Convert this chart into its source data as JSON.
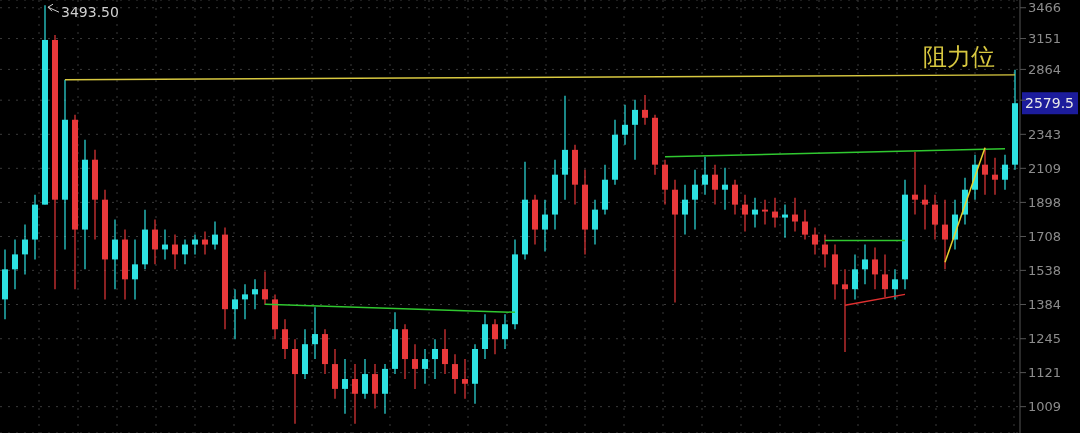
{
  "chart_data": {
    "type": "candlestick",
    "categories": [
      null,
      null,
      null,
      null,
      null,
      null,
      null,
      null,
      null,
      null,
      null,
      null,
      null,
      null,
      null,
      null,
      null,
      null,
      null,
      null,
      null,
      null,
      null,
      null,
      null,
      null,
      null,
      null,
      null,
      null,
      null,
      null,
      null,
      null,
      null,
      null,
      null,
      null,
      null,
      null,
      null,
      null,
      null,
      null,
      null,
      null,
      null,
      null,
      null,
      null,
      null,
      null,
      null,
      null,
      null,
      null,
      null,
      null,
      null,
      null,
      null,
      null,
      null,
      null,
      null,
      null,
      null,
      null,
      null,
      null,
      null,
      null,
      null,
      null,
      null,
      null,
      null,
      null,
      null,
      null,
      null,
      null,
      null,
      null,
      null,
      null,
      null,
      null,
      null,
      null,
      null,
      null,
      null,
      null,
      null,
      null,
      null,
      null,
      null,
      null,
      null,
      null
    ],
    "ohlc": [
      [
        1406,
        1641,
        1322,
        1543
      ],
      [
        1543,
        1692,
        1451,
        1616
      ],
      [
        1616,
        1772,
        1519,
        1692
      ],
      [
        1692,
        1944,
        1591,
        1885
      ],
      [
        1885,
        3493.5,
        1885,
        3137
      ],
      [
        3137,
        3186,
        1451,
        1914
      ],
      [
        1914,
        2773,
        1641,
        2451
      ],
      [
        2451,
        2489,
        1451,
        1745
      ],
      [
        1745,
        2304,
        1543,
        2166
      ],
      [
        2166,
        2233,
        1692,
        1914
      ],
      [
        1914,
        1974,
        1406,
        1591
      ],
      [
        1591,
        1800,
        1451,
        1692
      ],
      [
        1692,
        1745,
        1406,
        1496
      ],
      [
        1496,
        1692,
        1406,
        1567
      ],
      [
        1567,
        1856,
        1543,
        1745
      ],
      [
        1745,
        1800,
        1567,
        1641
      ],
      [
        1641,
        1745,
        1591,
        1666
      ],
      [
        1666,
        1718,
        1543,
        1616
      ],
      [
        1616,
        1692,
        1567,
        1666
      ],
      [
        1666,
        1718,
        1616,
        1692
      ],
      [
        1692,
        1734,
        1616,
        1666
      ],
      [
        1666,
        1789,
        1641,
        1718
      ],
      [
        1718,
        1756,
        1282,
        1364
      ],
      [
        1364,
        1451,
        1243,
        1406
      ],
      [
        1406,
        1473,
        1322,
        1428
      ],
      [
        1428,
        1496,
        1364,
        1451
      ],
      [
        1451,
        1533,
        1385,
        1406
      ],
      [
        1406,
        1428,
        1243,
        1282
      ],
      [
        1282,
        1322,
        1169,
        1206
      ],
      [
        1206,
        1243,
        957,
        1116
      ],
      [
        1116,
        1282,
        1099,
        1224
      ],
      [
        1224,
        1372,
        1169,
        1263
      ],
      [
        1263,
        1282,
        1116,
        1151
      ],
      [
        1151,
        1206,
        1034,
        1066
      ],
      [
        1066,
        1169,
        987,
        1099
      ],
      [
        1099,
        1151,
        957,
        1050
      ],
      [
        1050,
        1169,
        1034,
        1116
      ],
      [
        1116,
        1151,
        1003,
        1050
      ],
      [
        1050,
        1151,
        987,
        1134
      ],
      [
        1134,
        1351,
        1116,
        1282
      ],
      [
        1282,
        1302,
        1099,
        1169
      ],
      [
        1169,
        1224,
        1066,
        1134
      ],
      [
        1134,
        1206,
        1083,
        1169
      ],
      [
        1169,
        1243,
        1099,
        1206
      ],
      [
        1206,
        1282,
        1116,
        1151
      ],
      [
        1151,
        1187,
        1050,
        1099
      ],
      [
        1099,
        1169,
        1034,
        1083
      ],
      [
        1083,
        1224,
        1018,
        1206
      ],
      [
        1206,
        1343,
        1169,
        1302
      ],
      [
        1302,
        1322,
        1187,
        1243
      ],
      [
        1243,
        1343,
        1206,
        1302
      ],
      [
        1302,
        1692,
        1282,
        1616
      ],
      [
        1616,
        2153,
        1591,
        1914
      ],
      [
        1914,
        1944,
        1666,
        1745
      ],
      [
        1745,
        1914,
        1631,
        1828
      ],
      [
        1828,
        2166,
        1745,
        2068
      ],
      [
        2068,
        2639,
        1914,
        2233
      ],
      [
        2233,
        2268,
        1885,
        2005
      ],
      [
        2005,
        2100,
        1616,
        1745
      ],
      [
        1745,
        1914,
        1666,
        1856
      ],
      [
        1856,
        2133,
        1828,
        2036
      ],
      [
        2036,
        2451,
        2005,
        2340
      ],
      [
        2340,
        2567,
        2268,
        2413
      ],
      [
        2413,
        2607,
        2166,
        2527
      ],
      [
        2527,
        2647,
        2413,
        2466
      ],
      [
        2466,
        2489,
        2068,
        2133
      ],
      [
        2133,
        2166,
        1885,
        1974
      ],
      [
        1974,
        2036,
        1393,
        1828
      ],
      [
        1828,
        2005,
        1718,
        1914
      ],
      [
        1914,
        2100,
        1745,
        2005
      ],
      [
        2005,
        2186,
        1944,
        2068
      ],
      [
        2068,
        2133,
        1885,
        1974
      ],
      [
        1974,
        2113,
        1856,
        2005
      ],
      [
        2005,
        2036,
        1828,
        1885
      ],
      [
        1885,
        1944,
        1734,
        1828
      ],
      [
        1828,
        1925,
        1756,
        1856
      ],
      [
        1856,
        1914,
        1772,
        1845
      ],
      [
        1845,
        1925,
        1756,
        1811
      ],
      [
        1811,
        1885,
        1702,
        1828
      ],
      [
        1828,
        1925,
        1734,
        1789
      ],
      [
        1789,
        1856,
        1692,
        1718
      ],
      [
        1718,
        1756,
        1616,
        1666
      ],
      [
        1666,
        1718,
        1552,
        1616
      ],
      [
        1616,
        1666,
        1406,
        1473
      ],
      [
        1473,
        1543,
        1195,
        1451
      ],
      [
        1451,
        1616,
        1406,
        1543
      ],
      [
        1543,
        1666,
        1473,
        1591
      ],
      [
        1591,
        1651,
        1451,
        1519
      ],
      [
        1519,
        1616,
        1415,
        1451
      ],
      [
        1451,
        1543,
        1406,
        1496
      ],
      [
        1496,
        2036,
        1451,
        1944
      ],
      [
        1944,
        2219,
        1828,
        1914
      ],
      [
        1914,
        2005,
        1745,
        1885
      ],
      [
        1885,
        1944,
        1692,
        1772
      ],
      [
        1772,
        1914,
        1543,
        1692
      ],
      [
        1692,
        1914,
        1641,
        1828
      ],
      [
        1828,
        2049,
        1772,
        1974
      ],
      [
        1974,
        2199,
        1914,
        2133
      ],
      [
        2133,
        2247,
        1944,
        2068
      ],
      [
        2068,
        2179,
        1944,
        2036
      ],
      [
        2036,
        2199,
        1974,
        2133
      ],
      [
        2133,
        2860,
        2100,
        2579.5
      ]
    ],
    "colors": [
      "#2de1e1",
      "#2de1e1",
      "#2de1e1",
      "#2de1e1",
      "#2de1e1",
      "#e8383a",
      "#2de1e1",
      "#e8383a",
      "#2de1e1",
      "#e8383a",
      "#e8383a",
      "#2de1e1",
      "#e8383a",
      "#2de1e1",
      "#2de1e1",
      "#e8383a",
      "#2de1e1",
      "#e8383a",
      "#2de1e1",
      "#2de1e1",
      "#e8383a",
      "#2de1e1",
      "#e8383a",
      "#2de1e1",
      "#2de1e1",
      "#2de1e1",
      "#e8383a",
      "#e8383a",
      "#e8383a",
      "#e8383a",
      "#2de1e1",
      "#2de1e1",
      "#e8383a",
      "#e8383a",
      "#2de1e1",
      "#e8383a",
      "#2de1e1",
      "#e8383a",
      "#2de1e1",
      "#2de1e1",
      "#e8383a",
      "#e8383a",
      "#2de1e1",
      "#2de1e1",
      "#e8383a",
      "#e8383a",
      "#e8383a",
      "#2de1e1",
      "#2de1e1",
      "#e8383a",
      "#2de1e1",
      "#2de1e1",
      "#2de1e1",
      "#e8383a",
      "#2de1e1",
      "#2de1e1",
      "#2de1e1",
      "#e8383a",
      "#e8383a",
      "#2de1e1",
      "#2de1e1",
      "#2de1e1",
      "#2de1e1",
      "#2de1e1",
      "#e8383a",
      "#e8383a",
      "#e8383a",
      "#e8383a",
      "#2de1e1",
      "#2de1e1",
      "#2de1e1",
      "#e8383a",
      "#2de1e1",
      "#e8383a",
      "#e8383a",
      "#2de1e1",
      "#e8383a",
      "#e8383a",
      "#2de1e1",
      "#e8383a",
      "#e8383a",
      "#e8383a",
      "#e8383a",
      "#e8383a",
      "#e8383a",
      "#2de1e1",
      "#2de1e1",
      "#e8383a",
      "#e8383a",
      "#2de1e1",
      "#2de1e1",
      "#e8383a",
      "#e8383a",
      "#e8383a",
      "#e8383a",
      "#2de1e1",
      "#2de1e1",
      "#2de1e1",
      "#e8383a",
      "#e8383a",
      "#2de1e1",
      "#2de1e1"
    ],
    "series": [
      {
        "type": "line",
        "name": "阻力位",
        "color": "#d8c840",
        "values": [
          null,
          null,
          null,
          null,
          null,
          null,
          2773,
          null,
          null,
          null,
          null,
          null,
          null,
          null,
          null,
          null,
          null,
          null,
          null,
          null,
          null,
          null,
          null,
          null,
          null,
          null,
          null,
          null,
          null,
          null,
          null,
          null,
          null,
          null,
          null,
          null,
          null,
          null,
          null,
          null,
          null,
          null,
          null,
          null,
          null,
          null,
          null,
          null,
          null,
          null,
          null,
          null,
          null,
          null,
          null,
          null,
          null,
          null,
          null,
          null,
          null,
          null,
          null,
          null,
          null,
          null,
          null,
          null,
          null,
          null,
          null,
          null,
          null,
          null,
          null,
          null,
          null,
          null,
          null,
          null,
          null,
          null,
          null,
          null,
          null,
          null,
          null,
          null,
          null,
          null,
          null,
          null,
          null,
          null,
          null,
          null,
          null,
          null,
          null,
          null,
          null,
          2816
        ]
      },
      {
        "type": "line",
        "color": "#30c830",
        "values": [
          null,
          null,
          null,
          null,
          null,
          null,
          null,
          null,
          null,
          null,
          null,
          null,
          null,
          null,
          null,
          null,
          null,
          null,
          null,
          null,
          null,
          null,
          null,
          null,
          null,
          null,
          1385,
          null,
          null,
          null,
          null,
          null,
          null,
          null,
          null,
          null,
          null,
          null,
          null,
          null,
          null,
          null,
          null,
          null,
          null,
          null,
          null,
          null,
          null,
          null,
          null,
          1351,
          null,
          null,
          null,
          null,
          null,
          null,
          null,
          null,
          null,
          null,
          null,
          null,
          null,
          null,
          null,
          null,
          null,
          null,
          null,
          null,
          null,
          null,
          null,
          null,
          null,
          null,
          null,
          null,
          null,
          null,
          null,
          null,
          null,
          null,
          null,
          null,
          null,
          null,
          null,
          null,
          null,
          null,
          null,
          null,
          null,
          null,
          null,
          null,
          null,
          null
        ]
      },
      {
        "type": "line",
        "color": "#30c830",
        "values": [
          null,
          null,
          null,
          null,
          null,
          null,
          null,
          null,
          null,
          null,
          null,
          null,
          null,
          null,
          null,
          null,
          null,
          null,
          null,
          null,
          null,
          null,
          null,
          null,
          null,
          null,
          null,
          null,
          null,
          null,
          null,
          null,
          null,
          null,
          null,
          null,
          null,
          null,
          null,
          null,
          null,
          null,
          null,
          null,
          null,
          null,
          null,
          null,
          null,
          null,
          null,
          null,
          null,
          null,
          null,
          null,
          null,
          null,
          null,
          null,
          null,
          null,
          null,
          null,
          null,
          null,
          2186,
          null,
          null,
          null,
          null,
          null,
          null,
          null,
          null,
          null,
          null,
          null,
          null,
          null,
          null,
          null,
          null,
          null,
          null,
          null,
          null,
          null,
          null,
          null,
          null,
          null,
          null,
          null,
          null,
          null,
          null,
          null,
          null,
          null,
          2240,
          null
        ]
      },
      {
        "type": "line",
        "color": "#30c830",
        "values": [
          null,
          null,
          null,
          null,
          null,
          null,
          null,
          null,
          null,
          null,
          null,
          null,
          null,
          null,
          null,
          null,
          null,
          null,
          null,
          null,
          null,
          null,
          null,
          null,
          null,
          null,
          null,
          null,
          null,
          null,
          null,
          null,
          null,
          null,
          null,
          null,
          null,
          null,
          null,
          null,
          null,
          null,
          null,
          null,
          null,
          null,
          null,
          null,
          null,
          null,
          null,
          null,
          null,
          null,
          null,
          null,
          null,
          null,
          null,
          null,
          null,
          null,
          null,
          null,
          null,
          null,
          null,
          null,
          null,
          null,
          null,
          null,
          null,
          null,
          null,
          null,
          null,
          null,
          null,
          null,
          null,
          null,
          1687,
          null,
          null,
          null,
          null,
          null,
          null,
          null,
          1687,
          null,
          null,
          null,
          null,
          null,
          null,
          null,
          null,
          null,
          null,
          null
        ]
      },
      {
        "type": "line",
        "color": "#e03030",
        "values": [
          null,
          null,
          null,
          null,
          null,
          null,
          null,
          null,
          null,
          null,
          null,
          null,
          null,
          null,
          null,
          null,
          null,
          null,
          null,
          null,
          null,
          null,
          null,
          null,
          null,
          null,
          null,
          null,
          null,
          null,
          null,
          null,
          null,
          null,
          null,
          null,
          null,
          null,
          null,
          null,
          null,
          null,
          null,
          null,
          null,
          null,
          null,
          null,
          null,
          null,
          null,
          null,
          null,
          null,
          null,
          null,
          null,
          null,
          null,
          null,
          null,
          null,
          null,
          null,
          null,
          null,
          null,
          null,
          null,
          null,
          null,
          null,
          null,
          null,
          null,
          null,
          null,
          null,
          null,
          null,
          null,
          null,
          null,
          null,
          1381,
          null,
          null,
          null,
          null,
          null,
          1428,
          null,
          null,
          null,
          null,
          null,
          null,
          null,
          null,
          null,
          null,
          null
        ]
      },
      {
        "type": "line",
        "color": "#e8d030",
        "values": [
          null,
          null,
          null,
          null,
          null,
          null,
          null,
          null,
          null,
          null,
          null,
          null,
          null,
          null,
          null,
          null,
          null,
          null,
          null,
          null,
          null,
          null,
          null,
          null,
          null,
          null,
          null,
          null,
          null,
          null,
          null,
          null,
          null,
          null,
          null,
          null,
          null,
          null,
          null,
          null,
          null,
          null,
          null,
          null,
          null,
          null,
          null,
          null,
          null,
          null,
          null,
          null,
          null,
          null,
          null,
          null,
          null,
          null,
          null,
          null,
          null,
          null,
          null,
          null,
          null,
          null,
          null,
          null,
          null,
          null,
          null,
          null,
          null,
          null,
          null,
          null,
          null,
          null,
          null,
          null,
          null,
          null,
          null,
          null,
          null,
          null,
          null,
          null,
          null,
          null,
          null,
          null,
          null,
          null,
          1577,
          null,
          null,
          null,
          2247,
          null,
          null,
          null
        ]
      }
    ],
    "ylim": [
      930,
      3550
    ],
    "yticks": [
      1009,
      1121,
      1245,
      1384,
      1538,
      1708,
      1898,
      2109,
      2343,
      {
        "value": 2604,
        "label": null
      },
      2864,
      3151,
      3466
    ],
    "log": true,
    "grid": true,
    "tick_labels": "y",
    "annotations": [
      "3493.50",
      "2579.5"
    ]
  }
}
